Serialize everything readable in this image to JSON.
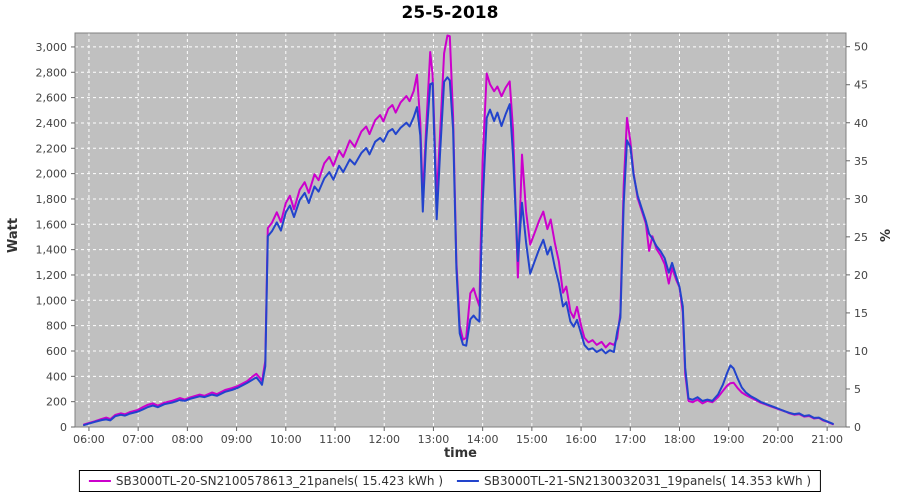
{
  "title": "25-5-2018",
  "chart_data": {
    "type": "line",
    "title": "25-5-2018",
    "xlabel": "time",
    "ylabel_left": "Watt",
    "ylabel_right": "%",
    "plot_bg_color": "#C0C0C0",
    "grid_color": "#FFFFFF",
    "plot_border_color": "#808080",
    "tick_color": "#666666",
    "tick_label_color": "#444444",
    "grid": "dashed white on gray, per hour and per 200 W",
    "legend_position": "bottom",
    "x_domain_minutes": [
      343,
      1283
    ],
    "y_left_domain": [
      0,
      3110
    ],
    "y_right_domain": [
      0,
      51.8
    ],
    "x_ticks": [
      {
        "minute": 360,
        "label": "06:00"
      },
      {
        "minute": 420,
        "label": "07:00"
      },
      {
        "minute": 480,
        "label": "08:00"
      },
      {
        "minute": 540,
        "label": "09:00"
      },
      {
        "minute": 600,
        "label": "10:00"
      },
      {
        "minute": 660,
        "label": "11:00"
      },
      {
        "minute": 720,
        "label": "12:00"
      },
      {
        "minute": 780,
        "label": "13:00"
      },
      {
        "minute": 840,
        "label": "14:00"
      },
      {
        "minute": 900,
        "label": "15:00"
      },
      {
        "minute": 960,
        "label": "16:00"
      },
      {
        "minute": 1020,
        "label": "17:00"
      },
      {
        "minute": 1080,
        "label": "18:00"
      },
      {
        "minute": 1140,
        "label": "19:00"
      },
      {
        "minute": 1200,
        "label": "20:00"
      },
      {
        "minute": 1260,
        "label": "21:00"
      }
    ],
    "y_left_ticks": [
      {
        "value": 0,
        "label": "0"
      },
      {
        "value": 200,
        "label": "200"
      },
      {
        "value": 400,
        "label": "400"
      },
      {
        "value": 600,
        "label": "600"
      },
      {
        "value": 800,
        "label": "800"
      },
      {
        "value": 1000,
        "label": "1,000"
      },
      {
        "value": 1200,
        "label": "1,200"
      },
      {
        "value": 1400,
        "label": "1,400"
      },
      {
        "value": 1600,
        "label": "1,600"
      },
      {
        "value": 1800,
        "label": "1,800"
      },
      {
        "value": 2000,
        "label": "2,000"
      },
      {
        "value": 2200,
        "label": "2,200"
      },
      {
        "value": 2400,
        "label": "2,400"
      },
      {
        "value": 2600,
        "label": "2,600"
      },
      {
        "value": 2800,
        "label": "2,800"
      },
      {
        "value": 3000,
        "label": "3,000"
      }
    ],
    "y_right_ticks": [
      {
        "value": 0,
        "label": "0"
      },
      {
        "value": 5,
        "label": "5"
      },
      {
        "value": 10,
        "label": "10"
      },
      {
        "value": 15,
        "label": "15"
      },
      {
        "value": 20,
        "label": "20"
      },
      {
        "value": 25,
        "label": "25"
      },
      {
        "value": 30,
        "label": "30"
      },
      {
        "value": 35,
        "label": "35"
      },
      {
        "value": 40,
        "label": "40"
      },
      {
        "value": 45,
        "label": "45"
      },
      {
        "value": 50,
        "label": "50"
      }
    ],
    "series": [
      {
        "name": "SB3000TL-20-SN2100578613_21panels( 15.423 kWh )",
        "color": "#CC00CC",
        "energy_kwh": "15.423"
      },
      {
        "name": "SB3000TL-21-SN2130032031_19panels( 14.353 kWh )",
        "color": "#2244CC",
        "energy_kwh": "14.353"
      }
    ],
    "rows_format": "[minute_of_day, watts_series0_magenta, watts_series1_blue]",
    "rows": [
      [
        354,
        20,
        15
      ],
      [
        367,
        45,
        40
      ],
      [
        376,
        65,
        55
      ],
      [
        381,
        74,
        60
      ],
      [
        386,
        62,
        52
      ],
      [
        392,
        95,
        85
      ],
      [
        399,
        108,
        96
      ],
      [
        404,
        100,
        90
      ],
      [
        410,
        118,
        106
      ],
      [
        420,
        136,
        122
      ],
      [
        426,
        158,
        140
      ],
      [
        432,
        176,
        158
      ],
      [
        438,
        186,
        170
      ],
      [
        444,
        168,
        156
      ],
      [
        452,
        192,
        180
      ],
      [
        461,
        206,
        192
      ],
      [
        471,
        228,
        212
      ],
      [
        477,
        216,
        206
      ],
      [
        483,
        232,
        222
      ],
      [
        495,
        256,
        242
      ],
      [
        501,
        246,
        236
      ],
      [
        510,
        272,
        256
      ],
      [
        516,
        259,
        246
      ],
      [
        526,
        292,
        278
      ],
      [
        534,
        306,
        292
      ],
      [
        541,
        322,
        308
      ],
      [
        553,
        362,
        348
      ],
      [
        559,
        396,
        372
      ],
      [
        564,
        420,
        392
      ],
      [
        569,
        382,
        352
      ],
      [
        571,
        362,
        333
      ],
      [
        575,
        520,
        480
      ],
      [
        578,
        1570,
        1505
      ],
      [
        583,
        1612,
        1545
      ],
      [
        589,
        1695,
        1615
      ],
      [
        594,
        1618,
        1550
      ],
      [
        600,
        1768,
        1695
      ],
      [
        605,
        1825,
        1748
      ],
      [
        610,
        1718,
        1658
      ],
      [
        617,
        1872,
        1792
      ],
      [
        623,
        1932,
        1848
      ],
      [
        628,
        1848,
        1768
      ],
      [
        635,
        1995,
        1898
      ],
      [
        640,
        1948,
        1858
      ],
      [
        647,
        2082,
        1962
      ],
      [
        653,
        2132,
        2012
      ],
      [
        658,
        2062,
        1952
      ],
      [
        665,
        2182,
        2062
      ],
      [
        670,
        2132,
        2012
      ],
      [
        678,
        2262,
        2112
      ],
      [
        684,
        2212,
        2072
      ],
      [
        692,
        2332,
        2162
      ],
      [
        698,
        2372,
        2202
      ],
      [
        702,
        2312,
        2152
      ],
      [
        709,
        2422,
        2252
      ],
      [
        715,
        2462,
        2282
      ],
      [
        719,
        2412,
        2252
      ],
      [
        725,
        2512,
        2332
      ],
      [
        730,
        2542,
        2352
      ],
      [
        734,
        2482,
        2312
      ],
      [
        740,
        2562,
        2362
      ],
      [
        747,
        2612,
        2402
      ],
      [
        751,
        2572,
        2372
      ],
      [
        756,
        2652,
        2445
      ],
      [
        760,
        2780,
        2525
      ],
      [
        764,
        2400,
        2300
      ],
      [
        767,
        1800,
        1700
      ],
      [
        771,
        2350,
        2250
      ],
      [
        776,
        2960,
        2705
      ],
      [
        779,
        2780,
        2715
      ],
      [
        784,
        1800,
        1640
      ],
      [
        788,
        2300,
        2150
      ],
      [
        793,
        2950,
        2725
      ],
      [
        797,
        3090,
        2760
      ],
      [
        800,
        3085,
        2735
      ],
      [
        804,
        2450,
        2350
      ],
      [
        808,
        1300,
        1250
      ],
      [
        812,
        800,
        740
      ],
      [
        816,
        690,
        650
      ],
      [
        820,
        705,
        642
      ],
      [
        825,
        1055,
        850
      ],
      [
        829,
        1095,
        880
      ],
      [
        832,
        1030,
        855
      ],
      [
        836,
        955,
        832
      ],
      [
        840,
        2100,
        1750
      ],
      [
        845,
        2790,
        2440
      ],
      [
        849,
        2705,
        2505
      ],
      [
        854,
        2650,
        2415
      ],
      [
        858,
        2688,
        2482
      ],
      [
        863,
        2610,
        2375
      ],
      [
        868,
        2678,
        2468
      ],
      [
        873,
        2728,
        2548
      ],
      [
        877,
        2350,
        2150
      ],
      [
        883,
        1180,
        1310
      ],
      [
        888,
        2150,
        1770
      ],
      [
        893,
        1700,
        1455
      ],
      [
        898,
        1440,
        1210
      ],
      [
        903,
        1525,
        1300
      ],
      [
        909,
        1630,
        1405
      ],
      [
        914,
        1700,
        1478
      ],
      [
        919,
        1562,
        1362
      ],
      [
        923,
        1638,
        1422
      ],
      [
        928,
        1455,
        1262
      ],
      [
        933,
        1305,
        1135
      ],
      [
        938,
        1060,
        952
      ],
      [
        942,
        1108,
        985
      ],
      [
        947,
        912,
        832
      ],
      [
        951,
        862,
        792
      ],
      [
        955,
        948,
        845
      ],
      [
        960,
        800,
        738
      ],
      [
        964,
        705,
        648
      ],
      [
        969,
        668,
        612
      ],
      [
        974,
        686,
        622
      ],
      [
        979,
        648,
        592
      ],
      [
        985,
        672,
        614
      ],
      [
        990,
        628,
        582
      ],
      [
        995,
        662,
        606
      ],
      [
        1000,
        648,
        592
      ],
      [
        1004,
        700,
        752
      ],
      [
        1008,
        905,
        862
      ],
      [
        1012,
        1905,
        1762
      ],
      [
        1016,
        2440,
        2262
      ],
      [
        1020,
        2258,
        2212
      ],
      [
        1024,
        2002,
        1988
      ],
      [
        1029,
        1805,
        1825
      ],
      [
        1034,
        1705,
        1725
      ],
      [
        1039,
        1605,
        1625
      ],
      [
        1043,
        1390,
        1525
      ],
      [
        1047,
        1505,
        1488
      ],
      [
        1052,
        1405,
        1428
      ],
      [
        1057,
        1355,
        1388
      ],
      [
        1062,
        1285,
        1332
      ],
      [
        1067,
        1132,
        1218
      ],
      [
        1071,
        1255,
        1295
      ],
      [
        1076,
        1162,
        1188
      ],
      [
        1080,
        1102,
        1105
      ],
      [
        1084,
        905,
        952
      ],
      [
        1087,
        420,
        468
      ],
      [
        1091,
        205,
        225
      ],
      [
        1096,
        196,
        215
      ],
      [
        1102,
        216,
        235
      ],
      [
        1108,
        186,
        205
      ],
      [
        1114,
        206,
        216
      ],
      [
        1120,
        196,
        206
      ],
      [
        1127,
        236,
        256
      ],
      [
        1133,
        286,
        336
      ],
      [
        1138,
        326,
        426
      ],
      [
        1142,
        346,
        486
      ],
      [
        1146,
        350,
        462
      ],
      [
        1151,
        306,
        382
      ],
      [
        1156,
        272,
        312
      ],
      [
        1161,
        252,
        272
      ],
      [
        1167,
        232,
        242
      ],
      [
        1173,
        212,
        222
      ],
      [
        1179,
        192,
        198
      ],
      [
        1185,
        178,
        183
      ],
      [
        1191,
        163,
        168
      ],
      [
        1197,
        150,
        153
      ],
      [
        1203,
        136,
        138
      ],
      [
        1209,
        122,
        123
      ],
      [
        1214,
        108,
        112
      ],
      [
        1220,
        97,
        102
      ],
      [
        1226,
        102,
        107
      ],
      [
        1232,
        82,
        87
      ],
      [
        1238,
        87,
        92
      ],
      [
        1244,
        67,
        72
      ],
      [
        1250,
        72,
        74
      ],
      [
        1255,
        52,
        57
      ],
      [
        1260,
        42,
        44
      ],
      [
        1267,
        22,
        25
      ]
    ]
  }
}
